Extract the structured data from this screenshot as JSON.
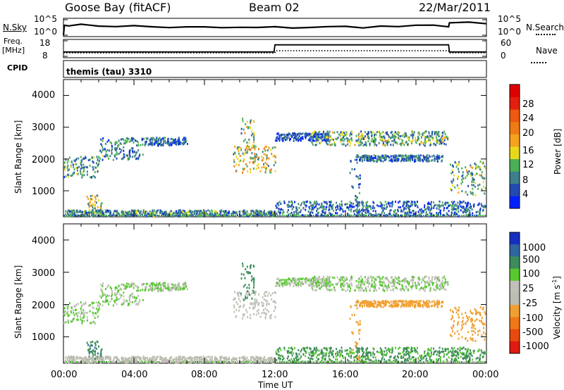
{
  "header": {
    "station": "Goose Bay (fitACF)",
    "beam": "Beam 02",
    "date": "22/Mar/2011"
  },
  "noise_panel": {
    "left_label": "N.Sky",
    "right_label": "N.Search",
    "left_ticks": [
      "10^5",
      "10^0"
    ],
    "right_ticks": [
      "10^5",
      "10^0"
    ]
  },
  "freq_panel": {
    "left_label_line1": "Freq.",
    "left_label_line2": "[MHz]",
    "right_label": "Nave",
    "left_ticks": [
      "18",
      "8"
    ],
    "right_ticks": [
      "60",
      "0"
    ],
    "cpid_label": "CPID",
    "cpid_text": "themis (tau) 3310"
  },
  "colors": {
    "power_scale": [
      "#0022ff",
      "#214bb0",
      "#3e7f8a",
      "#4bb053",
      "#e8d81c",
      "#f5a21e",
      "#f07b14",
      "#ee5a10",
      "#e51e0e",
      "#e00000"
    ],
    "velocity_scale": [
      "#1530c0",
      "#2f66a0",
      "#3d8c5a",
      "#58c830",
      "#c0c0b8",
      "#bcbcb0",
      "#f0a030",
      "#f07818",
      "#e84a0e",
      "#e01a10"
    ],
    "axis": "#000000"
  },
  "chart_data": [
    {
      "panel": "noise",
      "type": "line",
      "title": "",
      "x": "time UT (hours)",
      "xlim": [
        0,
        24
      ],
      "ylim_log10": [
        0,
        5
      ],
      "series": [
        {
          "name": "N.Sky",
          "style": "solid",
          "points": [
            [
              0.0,
              0.0
            ],
            [
              0.05,
              3.2
            ],
            [
              0.3,
              3.4
            ],
            [
              1.0,
              3.2
            ],
            [
              2.0,
              3.1
            ],
            [
              3.0,
              3.0
            ],
            [
              4.0,
              2.9
            ],
            [
              5.0,
              2.7
            ],
            [
              6.0,
              2.6
            ],
            [
              7.0,
              2.5
            ],
            [
              8.0,
              2.5
            ],
            [
              9.0,
              2.4
            ],
            [
              10.0,
              2.4
            ],
            [
              11.0,
              2.4
            ],
            [
              12.0,
              2.5
            ],
            [
              13.0,
              2.5
            ],
            [
              14.0,
              2.6
            ],
            [
              15.0,
              2.6
            ],
            [
              16.0,
              2.7
            ],
            [
              17.0,
              2.7
            ],
            [
              18.0,
              2.8
            ],
            [
              19.0,
              2.8
            ],
            [
              20.0,
              2.9
            ],
            [
              21.0,
              3.0
            ],
            [
              21.85,
              3.0
            ],
            [
              21.9,
              4.0
            ],
            [
              23.0,
              3.9
            ],
            [
              24.0,
              3.7
            ]
          ]
        },
        {
          "name": "N.Search",
          "style": "dotted",
          "points": []
        }
      ]
    },
    {
      "panel": "frequency",
      "type": "line",
      "title": "",
      "xlim": [
        0,
        24
      ],
      "ylim_freq": [
        8,
        18
      ],
      "ylim_nave": [
        0,
        60
      ],
      "series": [
        {
          "name": "Freq.",
          "style": "solid",
          "points": [
            [
              0.0,
              10.8
            ],
            [
              11.95,
              10.8
            ],
            [
              12.0,
              15.4
            ],
            [
              21.85,
              15.4
            ],
            [
              21.9,
              10.8
            ],
            [
              24.0,
              10.8
            ]
          ]
        },
        {
          "name": "Nave",
          "style": "dotted",
          "points": [
            [
              0.0,
              10.2
            ],
            [
              12.0,
              10.2
            ],
            [
              12.05,
              11.6
            ],
            [
              21.85,
              11.6
            ],
            [
              21.9,
              10.2
            ],
            [
              24.0,
              10.2
            ]
          ]
        }
      ]
    },
    {
      "panel": "power",
      "type": "heatmap",
      "xlabel": "",
      "ylabel": "Slant Range [km]",
      "xlim": [
        0,
        24
      ],
      "ylim": [
        180,
        4500
      ],
      "yticks": [
        1000,
        2000,
        3000,
        4000
      ],
      "colorbar_label": "Power [dB]",
      "colorbar_ticks": [
        "4",
        "8",
        "12",
        "16",
        "20",
        "24",
        "28"
      ],
      "colorbar_range": [
        0,
        30
      ],
      "bands": [
        {
          "t0": 0.0,
          "t1": 2.0,
          "r0": 1450,
          "r1": 2100,
          "value": 8
        },
        {
          "t0": 2.0,
          "t1": 4.5,
          "r0": 2000,
          "r1": 2700,
          "value": 7
        },
        {
          "t0": 4.5,
          "t1": 7.0,
          "r0": 2450,
          "r1": 2700,
          "value": 6
        },
        {
          "t0": 1.3,
          "t1": 2.2,
          "r0": 330,
          "r1": 900,
          "value": 12
        },
        {
          "t0": 0.0,
          "t1": 12.0,
          "r0": 200,
          "r1": 420,
          "value": 8
        },
        {
          "t0": 9.6,
          "t1": 12.0,
          "r0": 1600,
          "r1": 2450,
          "value": 14
        },
        {
          "t0": 10.0,
          "t1": 10.8,
          "r0": 2100,
          "r1": 3300,
          "value": 12
        },
        {
          "t0": 12.0,
          "t1": 15.0,
          "r0": 2600,
          "r1": 2850,
          "value": 4
        },
        {
          "t0": 14.0,
          "t1": 21.8,
          "r0": 2450,
          "r1": 2900,
          "value": 10
        },
        {
          "t0": 16.5,
          "t1": 21.5,
          "r0": 1950,
          "r1": 2150,
          "value": 6
        },
        {
          "t0": 21.9,
          "t1": 24.0,
          "r0": 900,
          "r1": 1950,
          "value": 10
        },
        {
          "t0": 16.2,
          "t1": 16.8,
          "r0": 250,
          "r1": 2000,
          "value": 6
        },
        {
          "t0": 12.0,
          "t1": 24.0,
          "r0": 200,
          "r1": 700,
          "value": 6
        }
      ]
    },
    {
      "panel": "velocity",
      "type": "heatmap",
      "xlabel": "Time UT",
      "ylabel": "Slant Range [km]",
      "xlim": [
        0,
        24
      ],
      "ylim": [
        180,
        4500
      ],
      "xticks": [
        "00:00",
        "04:00",
        "08:00",
        "12:00",
        "16:00",
        "20:00",
        "00:00"
      ],
      "yticks": [
        1000,
        2000,
        3000,
        4000
      ],
      "colorbar_label": "Velocity [m s-1]",
      "colorbar_label_parts": [
        "Velocity [m s",
        "-1",
        "]"
      ],
      "colorbar_ticks": [
        "1000",
        "500",
        "100",
        "25",
        "-25",
        "-100",
        "-500",
        "-1000"
      ],
      "bands": [
        {
          "t0": 0.0,
          "t1": 2.0,
          "r0": 1450,
          "r1": 2100,
          "value": 0
        },
        {
          "t0": 2.0,
          "t1": 4.5,
          "r0": 2000,
          "r1": 2700,
          "value": 0
        },
        {
          "t0": 4.5,
          "t1": 7.0,
          "r0": 2450,
          "r1": 2700,
          "value": 0
        },
        {
          "t0": 1.3,
          "t1": 2.2,
          "r0": 330,
          "r1": 900,
          "value": 80
        },
        {
          "t0": 0.0,
          "t1": 12.0,
          "r0": 200,
          "r1": 420,
          "value": -60
        },
        {
          "t0": 9.6,
          "t1": 12.0,
          "r0": 1600,
          "r1": 2450,
          "value": -10
        },
        {
          "t0": 10.0,
          "t1": 10.8,
          "r0": 2100,
          "r1": 3300,
          "value": 60
        },
        {
          "t0": 12.0,
          "t1": 15.0,
          "r0": 2600,
          "r1": 2850,
          "value": 0
        },
        {
          "t0": 14.0,
          "t1": 21.8,
          "r0": 2450,
          "r1": 2900,
          "value": 0
        },
        {
          "t0": 16.5,
          "t1": 21.5,
          "r0": 1950,
          "r1": 2150,
          "value": -200
        },
        {
          "t0": 21.9,
          "t1": 24.0,
          "r0": 900,
          "r1": 1950,
          "value": -300
        },
        {
          "t0": 16.2,
          "t1": 16.8,
          "r0": 250,
          "r1": 2000,
          "value": -150
        },
        {
          "t0": 12.0,
          "t1": 24.0,
          "r0": 200,
          "r1": 700,
          "value": 30
        }
      ]
    }
  ]
}
